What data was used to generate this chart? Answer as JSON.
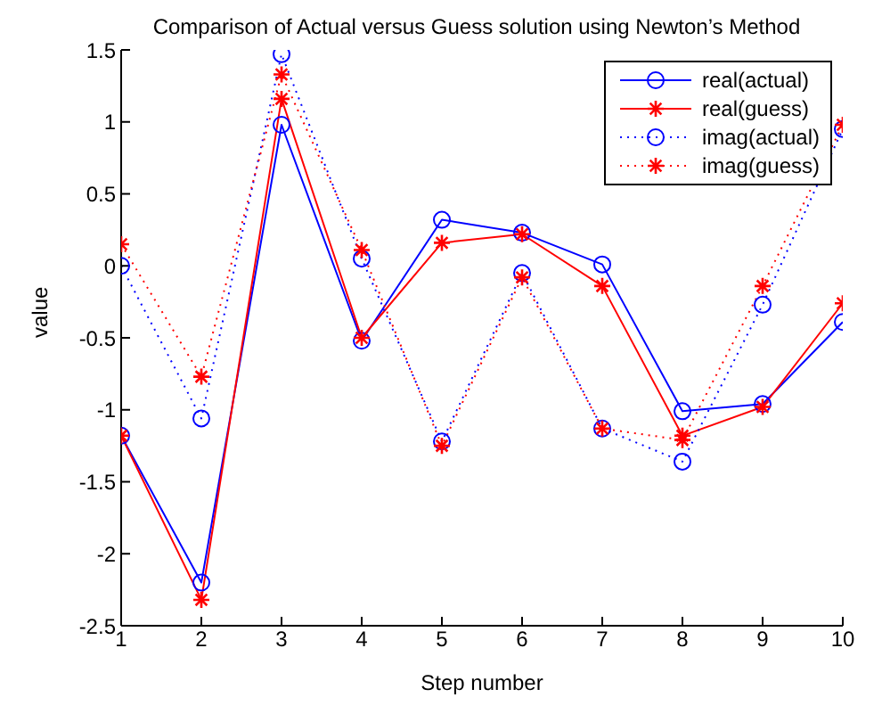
{
  "chart_data": {
    "type": "line",
    "title": "Comparison of Actual versus Guess solution using Newton’s Method",
    "xlabel": "Step number",
    "ylabel": "value",
    "x": [
      1,
      2,
      3,
      4,
      5,
      6,
      7,
      8,
      9,
      10
    ],
    "series": [
      {
        "name": "real(actual)",
        "color": "#0000ff",
        "marker": "circle",
        "line_style": "solid",
        "values": [
          -1.18,
          -2.2,
          0.98,
          -0.52,
          0.32,
          0.23,
          0.01,
          -1.01,
          -0.96,
          -0.39
        ]
      },
      {
        "name": "real(guess)",
        "color": "#ff0000",
        "marker": "cross",
        "line_style": "solid",
        "values": [
          -1.18,
          -2.32,
          1.16,
          -0.5,
          0.16,
          0.22,
          -0.14,
          -1.18,
          -0.98,
          -0.26
        ]
      },
      {
        "name": "imag(actual)",
        "color": "#0000ff",
        "marker": "circle",
        "line_style": "dotted",
        "values": [
          0,
          -1.06,
          1.47,
          0.05,
          -1.22,
          -0.05,
          -1.13,
          -1.36,
          -0.27,
          0.95
        ]
      },
      {
        "name": "imag(guess)",
        "color": "#ff0000",
        "marker": "cross",
        "line_style": "dotted",
        "values": [
          0.15,
          -0.77,
          1.33,
          0.11,
          -1.25,
          -0.08,
          -1.13,
          -1.21,
          -0.14,
          0.98
        ]
      }
    ],
    "xlim": [
      1,
      10
    ],
    "xticks": [
      1,
      2,
      3,
      4,
      5,
      6,
      7,
      8,
      9,
      10
    ],
    "ylim": [
      -2.5,
      1.5
    ],
    "yticks": [
      -2.5,
      -2,
      -1.5,
      -1,
      -0.5,
      0,
      0.5,
      1,
      1.5
    ],
    "grid": false,
    "legend": "top right"
  }
}
